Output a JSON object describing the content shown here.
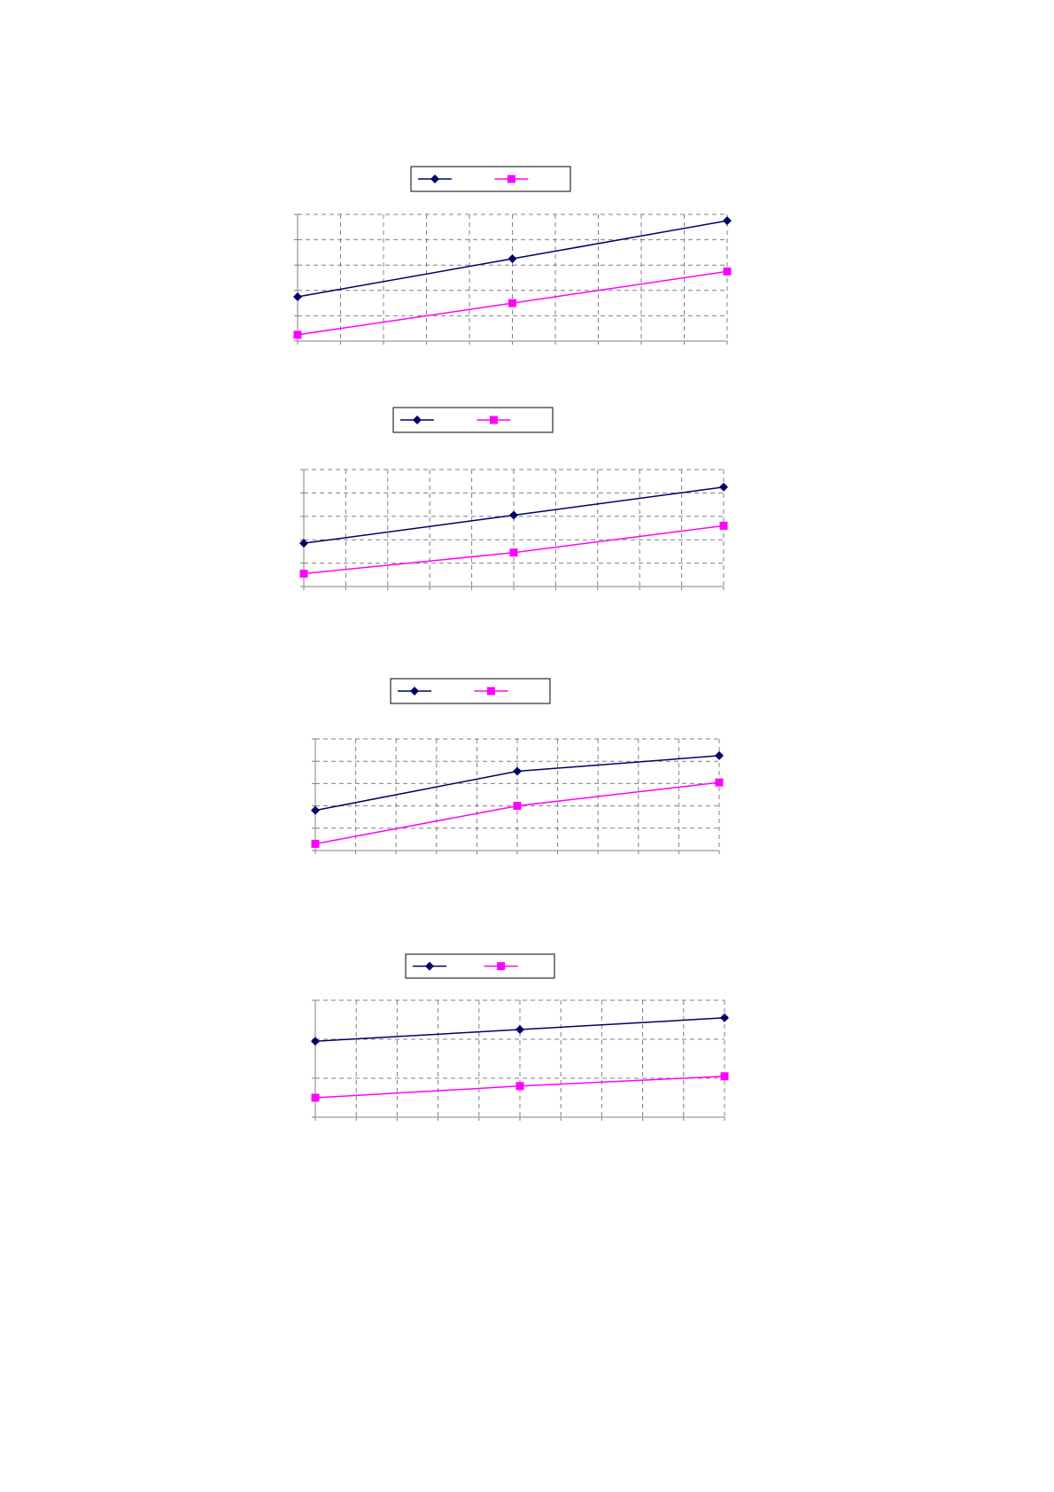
{
  "colors": {
    "series_a": "#000066",
    "series_b": "#ff00ff",
    "grid": "#808080",
    "axis": "#808080",
    "legend_border": "#000000",
    "background": "#ffffff"
  },
  "chart_data": [
    {
      "type": "line",
      "x": [
        0,
        1,
        2
      ],
      "xlim": [
        0,
        2
      ],
      "ylim": [
        0,
        5
      ],
      "x_gridlines": 10,
      "y_gridlines": 5,
      "grid": true,
      "legend_position": "top",
      "series": [
        {
          "color": "#000066",
          "marker": "diamond",
          "values": [
            1.75,
            3.25,
            4.75
          ]
        },
        {
          "color": "#ff00ff",
          "marker": "square",
          "values": [
            0.25,
            1.5,
            2.75
          ]
        }
      ]
    },
    {
      "type": "line",
      "x": [
        0,
        1,
        2
      ],
      "xlim": [
        0,
        2
      ],
      "ylim": [
        0,
        5
      ],
      "x_gridlines": 10,
      "y_gridlines": 5,
      "grid": true,
      "legend_position": "top",
      "series": [
        {
          "color": "#000066",
          "marker": "diamond",
          "values": [
            1.85,
            3.05,
            4.25
          ]
        },
        {
          "color": "#ff00ff",
          "marker": "square",
          "values": [
            0.55,
            1.45,
            2.6
          ]
        }
      ]
    },
    {
      "type": "line",
      "x": [
        0,
        1,
        2
      ],
      "xlim": [
        0,
        2
      ],
      "ylim": [
        0,
        5
      ],
      "x_gridlines": 10,
      "y_gridlines": 5,
      "grid": true,
      "legend_position": "top",
      "series": [
        {
          "color": "#000066",
          "marker": "diamond",
          "values": [
            1.8,
            3.55,
            4.25
          ]
        },
        {
          "color": "#ff00ff",
          "marker": "square",
          "values": [
            0.3,
            2.0,
            3.05
          ]
        }
      ]
    },
    {
      "type": "line",
      "x": [
        0,
        1,
        2
      ],
      "xlim": [
        0,
        2
      ],
      "ylim": [
        0,
        3
      ],
      "x_gridlines": 10,
      "y_gridlines": 3,
      "grid": true,
      "legend_position": "top",
      "series": [
        {
          "color": "#000066",
          "marker": "diamond",
          "values": [
            1.95,
            2.25,
            2.55
          ]
        },
        {
          "color": "#ff00ff",
          "marker": "square",
          "values": [
            0.5,
            0.8,
            1.05
          ]
        }
      ]
    }
  ]
}
